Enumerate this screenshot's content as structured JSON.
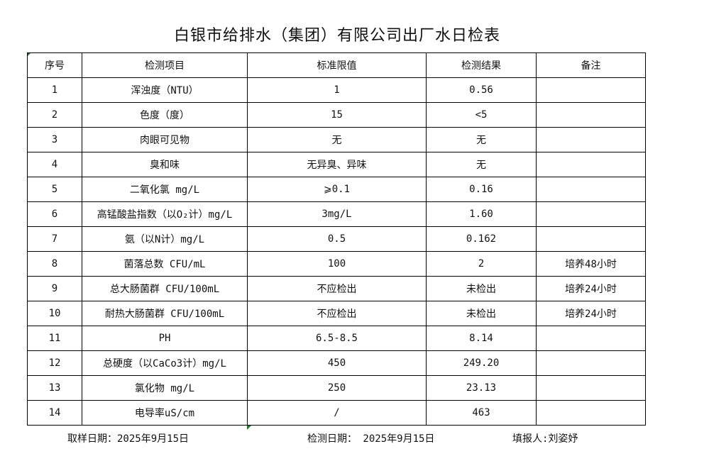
{
  "title": "白银市给排水（集团）有限公司出厂水日检表",
  "headers": [
    "序号",
    "检测项目",
    "标准限值",
    "检测结果",
    "备注"
  ],
  "rows": [
    [
      "1",
      "浑浊度（NTU）",
      "1",
      "0.56",
      ""
    ],
    [
      "2",
      "色度（度）",
      "15",
      "<5",
      ""
    ],
    [
      "3",
      "肉眼可见物",
      "无",
      "无",
      ""
    ],
    [
      "4",
      "臭和味",
      "无异臭、异味",
      "无",
      ""
    ],
    [
      "5",
      "二氧化氯 mg/L",
      "⩾0.1",
      "0.16",
      ""
    ],
    [
      "6",
      "高锰酸盐指数（以O₂计）mg/L",
      "3mg/L",
      "1.60",
      ""
    ],
    [
      "7",
      "氨（以N计）mg/L",
      "0.5",
      "0.162",
      ""
    ],
    [
      "8",
      "菌落总数 CFU/mL",
      "100",
      "2",
      "培养48小时"
    ],
    [
      "9",
      "总大肠菌群 CFU/100mL",
      "不应检出",
      "未检出",
      "培养24小时"
    ],
    [
      "10",
      "耐热大肠菌群 CFU/100mL",
      "不应检出",
      "未检出",
      "培养24小时"
    ],
    [
      "11",
      "PH",
      "6.5-8.5",
      "8.14",
      ""
    ],
    [
      "12",
      "总硬度（以CaCo3计）mg/L",
      "450",
      "249.20",
      ""
    ],
    [
      "13",
      "氯化物 mg/L",
      "250",
      "23.13",
      ""
    ],
    [
      "14",
      "电导率uS/cm",
      "/",
      "463",
      ""
    ]
  ],
  "footer": {
    "sampling_date": "取样日期：2025年9月15日",
    "test_date": "检测日期： 2025年9月15日",
    "reporter": "填报人:刘姿妤"
  }
}
